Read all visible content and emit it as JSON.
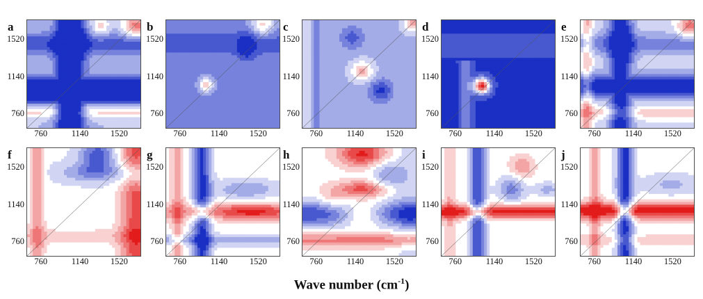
{
  "chart_data": {
    "type": "heatmap",
    "layout": {
      "rows": 2,
      "cols": 5
    },
    "xlabel": {
      "prefix": "Wave number (cm",
      "sup": "-1",
      "suffix": ")"
    },
    "axis_range": [
      620,
      1720
    ],
    "x_ticks": [
      "760",
      "1140",
      "1520"
    ],
    "y_ticks": [
      "1520",
      "1140",
      "760"
    ],
    "colors": {
      "negative": "#1a2fc4",
      "neutral": "#ffffff",
      "positive": "#e21b1b",
      "contour": "#555555"
    },
    "panels": [
      {
        "label": "a",
        "row": 0,
        "col": 0
      },
      {
        "label": "b",
        "row": 0,
        "col": 1
      },
      {
        "label": "c",
        "row": 0,
        "col": 2
      },
      {
        "label": "d",
        "row": 0,
        "col": 3
      },
      {
        "label": "e",
        "row": 0,
        "col": 4
      },
      {
        "label": "f",
        "row": 1,
        "col": 0
      },
      {
        "label": "g",
        "row": 1,
        "col": 1
      },
      {
        "label": "h",
        "row": 1,
        "col": 2
      },
      {
        "label": "i",
        "row": 1,
        "col": 3
      },
      {
        "label": "j",
        "row": 1,
        "col": 4
      }
    ]
  }
}
